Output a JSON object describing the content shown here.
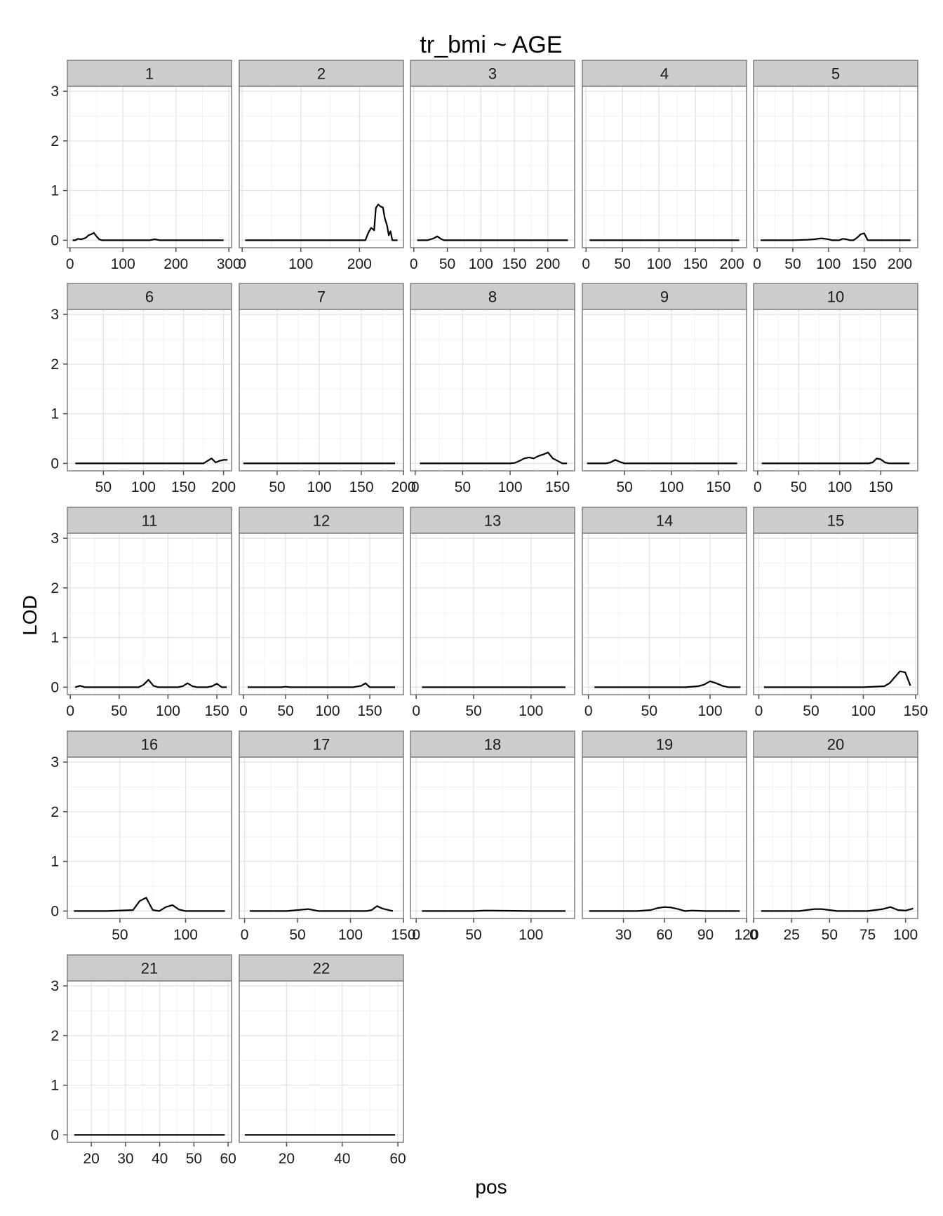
{
  "chart_data": {
    "type": "line",
    "title": "tr_bmi ~ AGE",
    "xlabel": "pos",
    "ylabel": "LOD",
    "ylim": [
      -0.15,
      3.1
    ],
    "yticks": [
      0,
      1,
      2,
      3
    ],
    "grid": true,
    "line_color": "#000000",
    "panel_background": "#ffffff",
    "strip_background": "#cccccc",
    "facets": [
      {
        "label": "1",
        "xlim": [
          -5,
          305
        ],
        "xticks": [
          0,
          100,
          200,
          300
        ],
        "x": [
          5,
          10,
          15,
          20,
          25,
          30,
          35,
          40,
          45,
          50,
          55,
          60,
          70,
          80,
          100,
          130,
          150,
          160,
          170,
          200,
          250,
          290
        ],
        "y": [
          0,
          0,
          0.03,
          0.02,
          0.03,
          0.05,
          0.1,
          0.12,
          0.15,
          0.08,
          0.02,
          0,
          0,
          0,
          0,
          0,
          0,
          0.02,
          0,
          0,
          0,
          0
        ]
      },
      {
        "label": "2",
        "xlim": [
          -5,
          275
        ],
        "xticks": [
          0,
          100,
          200
        ],
        "x": [
          5,
          50,
          100,
          150,
          200,
          210,
          215,
          220,
          225,
          228,
          232,
          236,
          240,
          243,
          247,
          250,
          253,
          256,
          260,
          265
        ],
        "y": [
          0,
          0,
          0,
          0,
          0,
          0,
          0.15,
          0.25,
          0.2,
          0.65,
          0.72,
          0.68,
          0.66,
          0.45,
          0.3,
          0.1,
          0.18,
          0,
          0,
          0
        ]
      },
      {
        "label": "3",
        "xlim": [
          -5,
          240
        ],
        "xticks": [
          0,
          50,
          100,
          150,
          200
        ],
        "x": [
          5,
          20,
          25,
          30,
          35,
          40,
          45,
          50,
          100,
          150,
          200,
          230
        ],
        "y": [
          0,
          0,
          0.02,
          0.04,
          0.08,
          0.03,
          0,
          0,
          0,
          0,
          0,
          0
        ]
      },
      {
        "label": "4",
        "xlim": [
          -5,
          220
        ],
        "xticks": [
          0,
          50,
          100,
          150,
          200
        ],
        "x": [
          5,
          50,
          100,
          150,
          200,
          210
        ],
        "y": [
          0,
          0,
          0,
          0,
          0,
          0
        ]
      },
      {
        "label": "5",
        "xlim": [
          -5,
          225
        ],
        "xticks": [
          0,
          50,
          100,
          150,
          200
        ],
        "x": [
          5,
          50,
          70,
          80,
          90,
          95,
          100,
          105,
          115,
          120,
          125,
          130,
          135,
          140,
          145,
          150,
          155,
          160,
          170,
          200,
          215
        ],
        "y": [
          0,
          0,
          0.01,
          0.02,
          0.04,
          0.03,
          0.02,
          0,
          0,
          0.03,
          0.02,
          0,
          0,
          0.05,
          0.12,
          0.14,
          0,
          0,
          0,
          0,
          0
        ]
      },
      {
        "label": "6",
        "xlim": [
          5,
          210
        ],
        "xticks": [
          50,
          100,
          150,
          200
        ],
        "x": [
          15,
          50,
          100,
          150,
          175,
          180,
          185,
          190,
          195,
          200,
          205
        ],
        "y": [
          0,
          0,
          0,
          0,
          0,
          0.05,
          0.1,
          0.02,
          0.05,
          0.07,
          0.07
        ]
      },
      {
        "label": "7",
        "xlim": [
          5,
          200
        ],
        "xticks": [
          50,
          100,
          150,
          200
        ],
        "x": [
          10,
          50,
          100,
          150,
          190
        ],
        "y": [
          0,
          0,
          0,
          0,
          0
        ]
      },
      {
        "label": "8",
        "xlim": [
          -5,
          168
        ],
        "xticks": [
          0,
          50,
          100,
          150
        ],
        "x": [
          5,
          50,
          100,
          105,
          110,
          115,
          120,
          125,
          130,
          135,
          140,
          145,
          150,
          155,
          160
        ],
        "y": [
          0,
          0,
          0,
          0.01,
          0.05,
          0.1,
          0.12,
          0.1,
          0.15,
          0.18,
          0.22,
          0.1,
          0.05,
          0,
          0
        ]
      },
      {
        "label": "9",
        "xlim": [
          5,
          180
        ],
        "xticks": [
          50,
          100,
          150
        ],
        "x": [
          10,
          30,
          35,
          40,
          45,
          50,
          55,
          100,
          150,
          170
        ],
        "y": [
          0,
          0,
          0.02,
          0.07,
          0.03,
          0,
          0,
          0,
          0,
          0
        ]
      },
      {
        "label": "10",
        "xlim": [
          -5,
          195
        ],
        "xticks": [
          0,
          50,
          100,
          150
        ],
        "x": [
          5,
          50,
          100,
          135,
          140,
          145,
          150,
          155,
          160,
          170,
          185
        ],
        "y": [
          0,
          0,
          0,
          0,
          0.02,
          0.1,
          0.08,
          0.02,
          0,
          0,
          0
        ]
      },
      {
        "label": "11",
        "xlim": [
          -3,
          165
        ],
        "xticks": [
          0,
          50,
          100,
          150
        ],
        "x": [
          5,
          10,
          15,
          50,
          70,
          75,
          80,
          85,
          90,
          100,
          110,
          115,
          120,
          125,
          130,
          140,
          145,
          150,
          155,
          160
        ],
        "y": [
          0,
          0.03,
          0,
          0,
          0,
          0.05,
          0.15,
          0.03,
          0,
          0,
          0,
          0.02,
          0.08,
          0.02,
          0,
          0,
          0.02,
          0.07,
          0,
          0
        ]
      },
      {
        "label": "12",
        "xlim": [
          -5,
          190
        ],
        "xticks": [
          0,
          50,
          100,
          150
        ],
        "x": [
          5,
          45,
          50,
          55,
          100,
          130,
          140,
          145,
          150,
          180
        ],
        "y": [
          0,
          0,
          0.01,
          0,
          0,
          0,
          0.03,
          0.08,
          0,
          0
        ]
      },
      {
        "label": "13",
        "xlim": [
          -5,
          138
        ],
        "xticks": [
          0,
          50,
          100
        ],
        "x": [
          5,
          50,
          100,
          130
        ],
        "y": [
          0,
          0,
          0,
          0
        ]
      },
      {
        "label": "14",
        "xlim": [
          -5,
          130
        ],
        "xticks": [
          0,
          50,
          100
        ],
        "x": [
          5,
          50,
          80,
          90,
          95,
          100,
          105,
          110,
          115,
          120,
          125
        ],
        "y": [
          0,
          0,
          0,
          0.02,
          0.05,
          0.12,
          0.08,
          0.03,
          0,
          0,
          0
        ]
      },
      {
        "label": "15",
        "xlim": [
          -5,
          152
        ],
        "xticks": [
          0,
          50,
          100,
          150
        ],
        "x": [
          5,
          50,
          100,
          120,
          125,
          130,
          135,
          140,
          145
        ],
        "y": [
          0,
          0,
          0,
          0.02,
          0.08,
          0.2,
          0.32,
          0.3,
          0.03
        ]
      },
      {
        "label": "16",
        "xlim": [
          10,
          135
        ],
        "xticks": [
          50,
          100
        ],
        "x": [
          15,
          40,
          60,
          65,
          70,
          75,
          80,
          85,
          90,
          95,
          100,
          110,
          125,
          130
        ],
        "y": [
          0,
          0,
          0.02,
          0.2,
          0.27,
          0.02,
          0,
          0.08,
          0.12,
          0.03,
          0,
          0,
          0,
          0
        ]
      },
      {
        "label": "17",
        "xlim": [
          -5,
          150
        ],
        "xticks": [
          0,
          50,
          100,
          150
        ],
        "x": [
          5,
          40,
          50,
          60,
          70,
          100,
          115,
          120,
          125,
          130,
          140
        ],
        "y": [
          0,
          0,
          0.02,
          0.04,
          0,
          0,
          0,
          0.02,
          0.1,
          0.05,
          0
        ]
      },
      {
        "label": "18",
        "xlim": [
          -5,
          138
        ],
        "xticks": [
          0,
          50,
          100
        ],
        "x": [
          5,
          50,
          60,
          100,
          130
        ],
        "y": [
          0,
          0,
          0.01,
          0,
          0
        ]
      },
      {
        "label": "19",
        "xlim": [
          0,
          120
        ],
        "xticks": [
          30,
          60,
          90,
          120
        ],
        "x": [
          5,
          40,
          50,
          55,
          60,
          65,
          70,
          75,
          80,
          90,
          100,
          115
        ],
        "y": [
          0,
          0,
          0.02,
          0.06,
          0.08,
          0.07,
          0.04,
          0,
          0.01,
          0,
          0,
          0
        ]
      },
      {
        "label": "20",
        "xlim": [
          0,
          108
        ],
        "xticks": [
          0,
          25,
          50,
          75,
          100
        ],
        "x": [
          5,
          30,
          35,
          40,
          45,
          50,
          55,
          75,
          85,
          90,
          95,
          100,
          105
        ],
        "y": [
          0,
          0,
          0.02,
          0.04,
          0.04,
          0.02,
          0,
          0,
          0.04,
          0.08,
          0.02,
          0.01,
          0.05
        ]
      },
      {
        "label": "21",
        "xlim": [
          13,
          61
        ],
        "xticks": [
          20,
          30,
          40,
          50,
          60
        ],
        "x": [
          15,
          30,
          45,
          59
        ],
        "y": [
          0,
          0,
          0,
          0
        ]
      },
      {
        "label": "22",
        "xlim": [
          3,
          62
        ],
        "xticks": [
          20,
          40,
          60
        ],
        "x": [
          5,
          20,
          40,
          59
        ],
        "y": [
          0,
          0,
          0,
          0
        ]
      }
    ]
  }
}
